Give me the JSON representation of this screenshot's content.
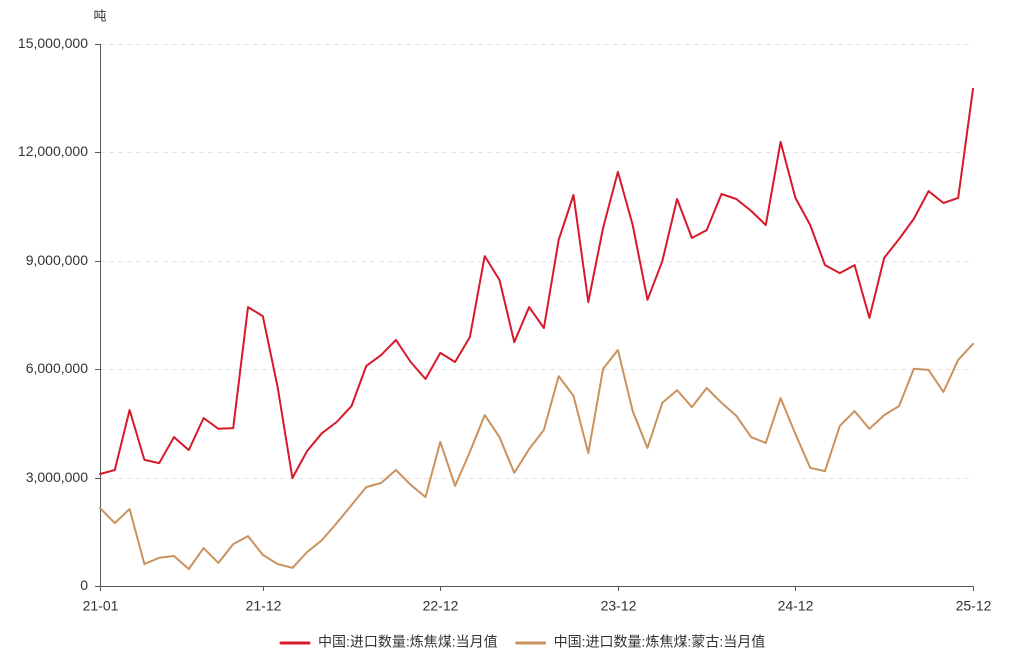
{
  "chart_data": {
    "type": "line",
    "ylabel": "吨",
    "ylim": [
      0,
      15000000
    ],
    "y_tick_labels": [
      "0",
      "3,000,000",
      "6,000,000",
      "9,000,000",
      "12,000,000",
      "15,000,000"
    ],
    "x_tick_labels": [
      "21-01",
      "21-12",
      "22-12",
      "23-12",
      "24-12",
      "25-12"
    ],
    "grid": true,
    "legend_position": "bottom",
    "x": [
      "21-01",
      "21-02",
      "21-03",
      "21-04",
      "21-05",
      "21-06",
      "21-07",
      "21-08",
      "21-09",
      "21-10",
      "21-11",
      "21-12",
      "22-01",
      "22-02",
      "22-03",
      "22-04",
      "22-05",
      "22-06",
      "22-07",
      "22-08",
      "22-09",
      "22-10",
      "22-11",
      "22-12",
      "23-01",
      "23-02",
      "23-03",
      "23-04",
      "23-05",
      "23-06",
      "23-07",
      "23-08",
      "23-09",
      "23-10",
      "23-11",
      "23-12",
      "24-01",
      "24-02",
      "24-03",
      "24-04",
      "24-05",
      "24-06",
      "24-07",
      "24-08",
      "24-09",
      "24-10",
      "24-11",
      "24-12",
      "25-01",
      "25-02",
      "25-03",
      "25-04",
      "25-05",
      "25-06",
      "25-07",
      "25-08",
      "25-09",
      "25-10",
      "25-11",
      "25-12"
    ],
    "series": [
      {
        "name": "中国:进口数量:炼焦煤:当月值",
        "color": "#d7192a",
        "values": [
          3100000,
          3210000,
          4870000,
          3490000,
          3400000,
          4120000,
          3760000,
          4650000,
          4350000,
          4370000,
          7720000,
          7470000,
          5510000,
          2990000,
          3740000,
          4230000,
          4540000,
          4980000,
          6090000,
          6390000,
          6810000,
          6200000,
          5730000,
          6450000,
          6200000,
          6890000,
          9130000,
          8470000,
          6750000,
          7720000,
          7140000,
          9580000,
          10820000,
          7860000,
          9910000,
          11460000,
          9990000,
          7920000,
          8990000,
          10710000,
          9630000,
          9850000,
          10850000,
          10710000,
          10380000,
          9990000,
          12290000,
          10740000,
          9990000,
          8880000,
          8660000,
          8880000,
          7420000,
          9080000,
          9600000,
          10160000,
          10930000,
          10600000,
          10740000,
          13760000
        ]
      },
      {
        "name": "中国:进口数量:炼焦煤:蒙古:当月值",
        "color": "#c9925e",
        "values": [
          2160000,
          1740000,
          2130000,
          610000,
          780000,
          830000,
          470000,
          1050000,
          640000,
          1160000,
          1380000,
          860000,
          610000,
          500000,
          940000,
          1270000,
          1740000,
          2240000,
          2740000,
          2850000,
          3210000,
          2800000,
          2460000,
          3990000,
          2770000,
          3710000,
          4730000,
          4120000,
          3130000,
          3790000,
          4320000,
          5810000,
          5260000,
          3680000,
          6010000,
          6530000,
          4840000,
          3820000,
          5070000,
          5420000,
          4950000,
          5480000,
          5070000,
          4710000,
          4120000,
          3960000,
          5200000,
          4210000,
          3270000,
          3180000,
          4430000,
          4840000,
          4350000,
          4730000,
          4980000,
          6010000,
          5980000,
          5370000,
          6260000,
          6700000
        ]
      }
    ]
  }
}
